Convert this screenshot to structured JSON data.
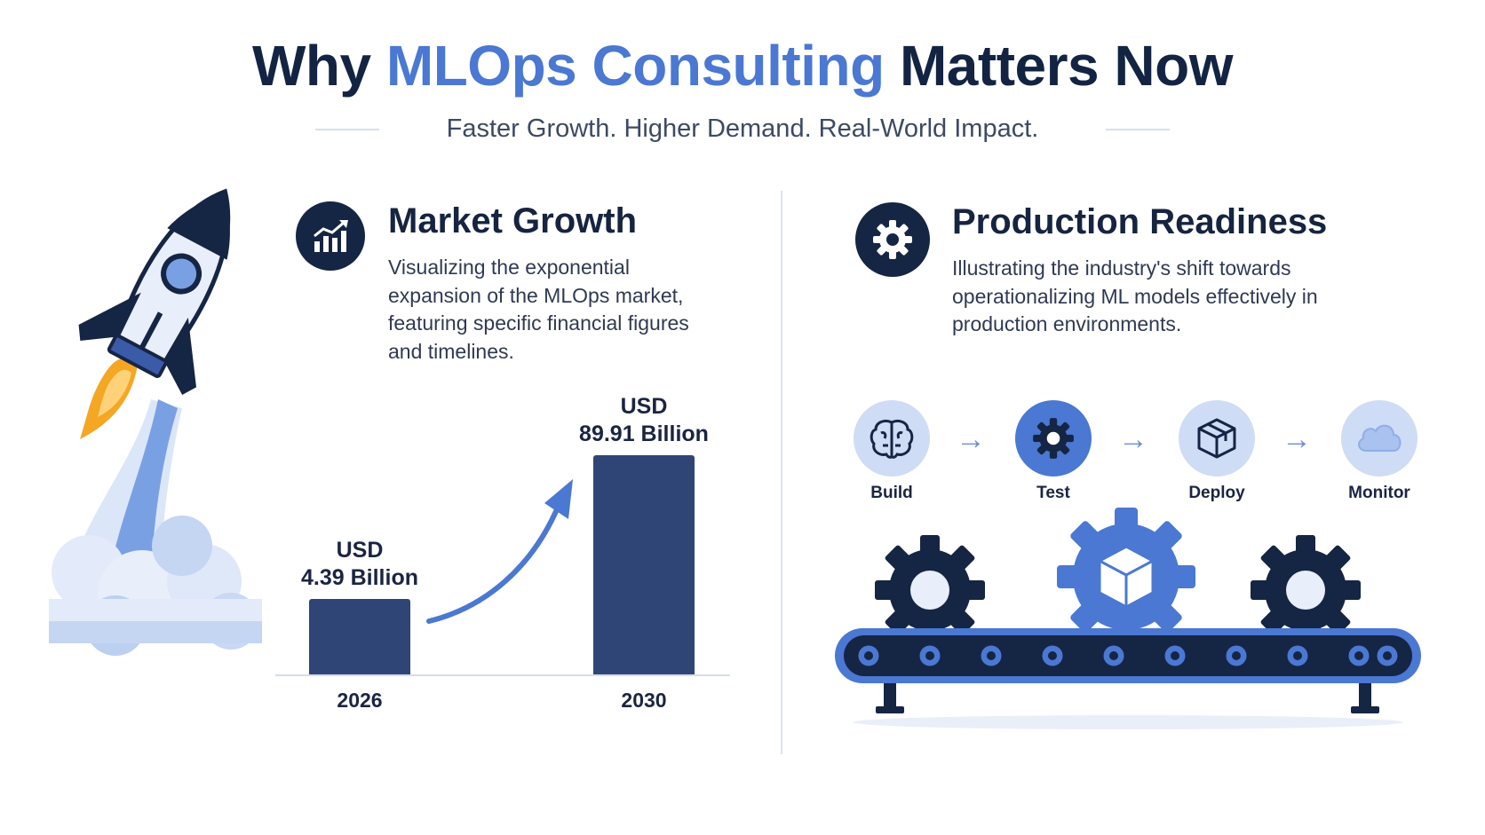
{
  "header": {
    "title_part1": "Why ",
    "title_accent": "MLOps Consulting",
    "title_part2": " Matters Now",
    "subtitle": "Faster Growth. Higher Demand. Real-World Impact."
  },
  "market": {
    "icon": "growth-chart-icon",
    "title": "Market Growth",
    "description": "Visualizing the exponential expansion of the MLOps market, featuring specific financial figures and timelines."
  },
  "production": {
    "icon": "gear-icon",
    "title": "Production Readiness",
    "description": "Illustrating the industry's shift towards operationalizing ML models effectively in production environments."
  },
  "chart_data": {
    "type": "bar",
    "categories": [
      "2026",
      "2030"
    ],
    "values": [
      4.39,
      89.91
    ],
    "data_labels": [
      {
        "line1": "USD",
        "line2": "4.39 Billion"
      },
      {
        "line1": "USD",
        "line2": "89.91 Billion"
      }
    ],
    "unit": "USD Billion",
    "title": "",
    "xlabel": "",
    "ylabel": "",
    "bar_color": "#2f4575",
    "bars_to_scale": false
  },
  "pipeline": {
    "steps": [
      {
        "label": "Build",
        "icon": "brain-icon"
      },
      {
        "label": "Test",
        "icon": "gear-icon"
      },
      {
        "label": "Deploy",
        "icon": "package-box-icon"
      },
      {
        "label": "Monitor",
        "icon": "cloud-icon"
      }
    ]
  },
  "colors": {
    "navy": "#152544",
    "accent_blue": "#4a78d2",
    "light_blue": "#cfdcf5",
    "flame_orange": "#f5a623"
  }
}
